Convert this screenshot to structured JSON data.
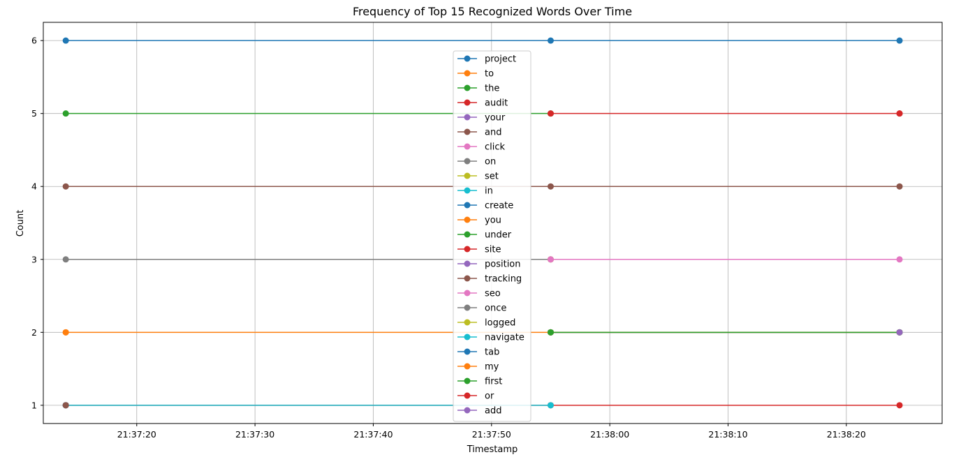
{
  "chart_data": {
    "type": "line",
    "title": "Frequency of Top 15 Recognized Words Over Time",
    "xlabel": "Timestamp",
    "ylabel": "Count",
    "x_ticks": [
      "21:37:20",
      "21:37:30",
      "21:37:40",
      "21:37:50",
      "21:38:00",
      "21:38:10",
      "21:38:20"
    ],
    "y_ticks": [
      1,
      2,
      3,
      4,
      5,
      6
    ],
    "xlim": [
      "21:37:12.1",
      "21:38:28.1"
    ],
    "ylim": [
      0.75,
      6.25
    ],
    "grid": true,
    "legend_position": "center",
    "series": [
      {
        "name": "project",
        "color": "#1f77b4",
        "x": [
          "21:37:14",
          "21:37:55",
          "21:38:24.5"
        ],
        "values": [
          6,
          6,
          6
        ]
      },
      {
        "name": "to",
        "color": "#ff7f0e",
        "x": [
          "21:37:14",
          "21:37:55",
          "21:38:24.5"
        ],
        "values": [
          2,
          2,
          2
        ]
      },
      {
        "name": "the",
        "color": "#2ca02c",
        "x": [
          "21:37:14",
          "21:37:55"
        ],
        "values": [
          5,
          5
        ]
      },
      {
        "name": "audit",
        "color": "#d62728",
        "x": [
          "21:37:14",
          "21:37:55",
          "21:38:24.5"
        ],
        "values": [
          1,
          1,
          1
        ]
      },
      {
        "name": "your",
        "color": "#9467bd",
        "x": [
          "21:37:14"
        ],
        "values": [
          1
        ]
      },
      {
        "name": "and",
        "color": "#8c564b",
        "x": [
          "21:37:14",
          "21:37:55",
          "21:38:24.5"
        ],
        "values": [
          4,
          4,
          4
        ]
      },
      {
        "name": "click",
        "color": "#e377c2",
        "x": [
          "21:37:55",
          "21:38:24.5"
        ],
        "values": [
          2,
          2
        ]
      },
      {
        "name": "on",
        "color": "#7f7f7f",
        "x": [
          "21:37:14",
          "21:37:55"
        ],
        "values": [
          3,
          3
        ]
      },
      {
        "name": "set",
        "color": "#bcbd22",
        "x": [
          "21:37:55"
        ],
        "values": [
          3
        ]
      },
      {
        "name": "in",
        "color": "#17becf",
        "x": [
          "21:37:14",
          "21:37:55"
        ],
        "values": [
          1,
          1
        ]
      },
      {
        "name": "create",
        "color": "#1f77b4",
        "x": [
          "21:37:14"
        ],
        "values": [
          1
        ]
      },
      {
        "name": "you",
        "color": "#ff7f0e",
        "x": [
          "21:37:14"
        ],
        "values": [
          2
        ]
      },
      {
        "name": "under",
        "color": "#2ca02c",
        "x": [
          "21:37:14"
        ],
        "values": [
          1
        ]
      },
      {
        "name": "site",
        "color": "#d62728",
        "x": [
          "21:37:55",
          "21:38:24.5"
        ],
        "values": [
          5,
          5
        ]
      },
      {
        "name": "position",
        "color": "#9467bd",
        "x": [
          "21:37:14"
        ],
        "values": [
          1
        ]
      },
      {
        "name": "tracking",
        "color": "#8c564b",
        "x": [
          "21:37:14"
        ],
        "values": [
          1
        ]
      },
      {
        "name": "seo",
        "color": "#e377c2",
        "x": [
          "21:37:55",
          "21:38:24.5"
        ],
        "values": [
          3,
          3
        ]
      },
      {
        "name": "once",
        "color": "#7f7f7f",
        "x": [
          "21:37:55",
          "21:38:24.5"
        ],
        "values": [
          2,
          2
        ]
      },
      {
        "name": "logged",
        "color": "#bcbd22",
        "x": [
          "21:37:55",
          "21:38:24.5"
        ],
        "values": [
          2,
          2
        ]
      },
      {
        "name": "navigate",
        "color": "#17becf",
        "x": [
          "21:37:55",
          "21:38:24.5"
        ],
        "values": [
          2,
          2
        ]
      },
      {
        "name": "tab",
        "color": "#1f77b4",
        "x": [
          "21:37:55",
          "21:38:24.5"
        ],
        "values": [
          2,
          2
        ]
      },
      {
        "name": "my",
        "color": "#ff7f0e",
        "x": [
          "21:37:55",
          "21:38:24.5"
        ],
        "values": [
          2,
          2
        ]
      },
      {
        "name": "first",
        "color": "#2ca02c",
        "x": [
          "21:37:55",
          "21:38:24.5"
        ],
        "values": [
          2,
          2
        ]
      },
      {
        "name": "or",
        "color": "#d62728",
        "x": [
          "21:38:24.5"
        ],
        "values": [
          5
        ]
      },
      {
        "name": "add",
        "color": "#9467bd",
        "x": [
          "21:38:24.5"
        ],
        "values": [
          2
        ]
      }
    ]
  }
}
